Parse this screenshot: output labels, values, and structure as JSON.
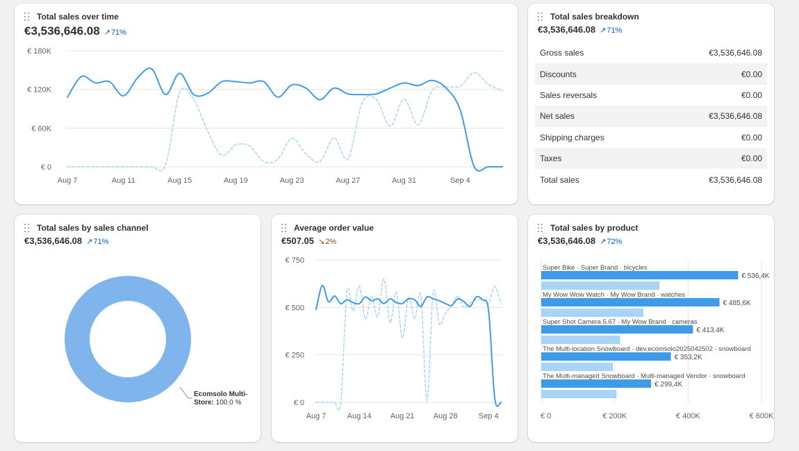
{
  "cards": {
    "sales_over_time": {
      "title": "Total sales over time",
      "value": "€3,536,646.08",
      "trend": "71%",
      "trend_direction": "up"
    },
    "breakdown": {
      "title": "Total sales breakdown",
      "value": "€3,536,646.08",
      "trend": "71%",
      "trend_direction": "up",
      "rows": [
        {
          "label": "Gross sales",
          "value": "€3,536,646.08"
        },
        {
          "label": "Discounts",
          "value": "€0.00"
        },
        {
          "label": "Sales reversals",
          "value": "€0.00"
        },
        {
          "label": "Net sales",
          "value": "€3,536,646.08"
        },
        {
          "label": "Shipping charges",
          "value": "€0.00"
        },
        {
          "label": "Taxes",
          "value": "€0.00"
        },
        {
          "label": "Total sales",
          "value": "€3,536,646.08"
        }
      ]
    },
    "by_channel": {
      "title": "Total sales by sales channel",
      "value": "€3,536,646.08",
      "trend": "71%",
      "trend_direction": "up"
    },
    "aov": {
      "title": "Average order value",
      "value": "€507.05",
      "trend": "2%",
      "trend_direction": "down"
    },
    "by_product": {
      "title": "Total sales by product",
      "value": "€3,536,646.08",
      "trend": "72%",
      "trend_direction": "up"
    }
  },
  "colors": {
    "primary_series": "#3d9be9",
    "comparison_series": "#a9d4f5",
    "donut": "#7fb5ec",
    "trend_up": "#005bd3",
    "trend_down": "#8e4b10",
    "grid": "#e3e3e3"
  },
  "icons": {
    "drag_handle": "drag-handle-icon",
    "trend_up": "arrow-up-right-icon",
    "trend_down": "arrow-down-right-icon"
  },
  "chart_data": [
    {
      "id": "sales_over_time",
      "type": "line",
      "title": "Total sales over time",
      "ylim": [
        0,
        180000
      ],
      "yticks": [
        0,
        60000,
        120000,
        180000
      ],
      "ytick_labels": [
        "€ 0",
        "€ 60K",
        "€ 120K",
        "€ 180K"
      ],
      "xtick_labels": [
        "Aug 7",
        "Aug 11",
        "Aug 15",
        "Aug 19",
        "Aug 23",
        "Aug 27",
        "Aug 31",
        "Sep 4"
      ],
      "xtick_index": [
        0,
        4,
        8,
        12,
        16,
        20,
        24,
        28
      ],
      "grid": true,
      "series": [
        {
          "style": "solid",
          "values": [
            108000,
            140000,
            130000,
            132000,
            110000,
            138000,
            152000,
            112000,
            145000,
            112000,
            114000,
            132000,
            132000,
            130000,
            132000,
            108000,
            127000,
            122000,
            104000,
            122000,
            113000,
            112000,
            113000,
            122000,
            130000,
            126000,
            134000,
            122000,
            88000,
            0,
            0,
            0
          ]
        },
        {
          "style": "dashed",
          "values": [
            0,
            0,
            0,
            0,
            0,
            0,
            0,
            3000,
            115000,
            105000,
            55000,
            18000,
            34000,
            32000,
            8000,
            12000,
            44000,
            20000,
            8000,
            45000,
            12000,
            99000,
            105000,
            63000,
            105000,
            65000,
            118000,
            124000,
            125000,
            146000,
            128000,
            118000
          ]
        }
      ]
    },
    {
      "id": "by_channel",
      "type": "pie",
      "title": "Total sales by sales channel",
      "slices": [
        {
          "label": "Ecomsolo Multi-Store",
          "value": 100.0,
          "value_label": "100.0 %"
        }
      ]
    },
    {
      "id": "aov",
      "type": "line",
      "title": "Average order value",
      "ylim": [
        0,
        750
      ],
      "yticks": [
        0,
        250,
        500,
        750
      ],
      "ytick_labels": [
        "€ 0",
        "€ 250",
        "€ 500",
        "€ 750"
      ],
      "xtick_labels": [
        "Aug 7",
        "Aug 14",
        "Aug 21",
        "Aug 28",
        "Sep 4"
      ],
      "xtick_index": [
        0,
        7,
        14,
        21,
        28
      ],
      "grid": true,
      "series": [
        {
          "style": "solid",
          "values": [
            490,
            615,
            530,
            560,
            520,
            540,
            525,
            520,
            555,
            535,
            545,
            520,
            545,
            525,
            520,
            545,
            540,
            505,
            555,
            545,
            535,
            520,
            510,
            545,
            530,
            505,
            555,
            540,
            480,
            20,
            0
          ]
        },
        {
          "style": "dashed",
          "values": [
            0,
            0,
            0,
            0,
            0,
            580,
            480,
            610,
            440,
            560,
            450,
            650,
            420,
            580,
            340,
            550,
            440,
            560,
            10,
            580,
            410,
            470,
            510,
            560,
            500,
            525,
            540,
            540,
            520,
            610,
            520
          ]
        }
      ]
    },
    {
      "id": "by_product",
      "type": "bar",
      "orientation": "horizontal",
      "title": "Total sales by product",
      "xlim": [
        0,
        600000
      ],
      "xticks": [
        0,
        200000,
        400000,
        600000
      ],
      "xtick_labels": [
        "€ 0",
        "€ 200K",
        "€ 400K",
        "€ 600K"
      ],
      "grid": true,
      "categories": [
        "Super Bike · Super Brand · bicycles",
        "My Wow Wow Watch · My Wow Brand · watches",
        "Super Shot Camera 5.67 · My Wow Brand · cameras",
        "The Multi-location Snowboard · dev.ecomsolo2025042502 · snowboard",
        "The Multi-managed Snowboard · Multi-managed Vendor · snowboard"
      ],
      "series": [
        {
          "style": "primary",
          "values": [
            536400,
            485600,
            413400,
            353200,
            299400
          ],
          "value_labels": [
            "€ 536,4K",
            "€ 485,6K",
            "€ 413,4K",
            "€ 353,2K",
            "€ 299,4K"
          ]
        },
        {
          "style": "comparison",
          "values": [
            322000,
            278000,
            215000,
            195000,
            205000
          ]
        }
      ]
    }
  ]
}
